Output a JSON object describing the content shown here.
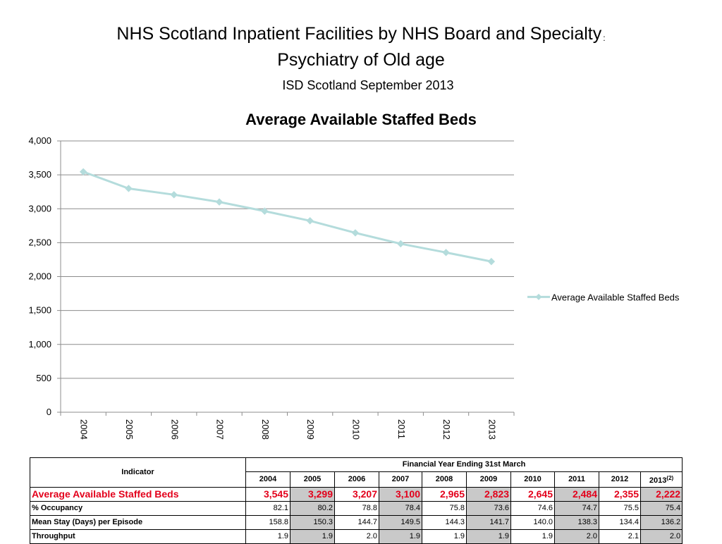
{
  "header": {
    "title_line1": "NHS Scotland  Inpatient Facilities by NHS Board and Specialty",
    "title_colon": ":",
    "title_line2": "Psychiatry of Old age",
    "subtitle": "ISD Scotland September 2013"
  },
  "chart_data": {
    "type": "line",
    "title": "Average Available Staffed Beds",
    "categories": [
      "2004",
      "2005",
      "2006",
      "2007",
      "2008",
      "2009",
      "2010",
      "2011",
      "2012",
      "2013"
    ],
    "series": [
      {
        "name": "Average Available Staffed Beds",
        "values": [
          3545,
          3299,
          3207,
          3100,
          2965,
          2823,
          2645,
          2484,
          2355,
          2222
        ]
      }
    ],
    "yticks": [
      "0",
      "500",
      "1,000",
      "1,500",
      "2,000",
      "2,500",
      "3,000",
      "3,500",
      "4,000"
    ],
    "ylim": [
      0,
      4000
    ],
    "xlabel": "",
    "ylabel": "",
    "legend_position": "right",
    "colors": {
      "line": "#b4dcdc",
      "marker": "#b4dcdc",
      "grid": "#8c8c8c",
      "axis": "#8c8c8c"
    }
  },
  "table": {
    "indicator_header": "Indicator",
    "period_header": "Financial Year Ending 31st March",
    "years": [
      "2004",
      "2005",
      "2006",
      "2007",
      "2008",
      "2009",
      "2010",
      "2011",
      "2012",
      "2013"
    ],
    "last_year_note": "(2)",
    "rows": [
      {
        "label": "Average Available Staffed Beds",
        "values": [
          "3,545",
          "3,299",
          "3,207",
          "3,100",
          "2,965",
          "2,823",
          "2,645",
          "2,484",
          "2,355",
          "2,222"
        ]
      },
      {
        "label": "% Occupancy",
        "values": [
          "82.1",
          "80.2",
          "78.8",
          "78.4",
          "75.8",
          "73.6",
          "74.6",
          "74.7",
          "75.5",
          "75.4"
        ]
      },
      {
        "label": "Mean Stay (Days) per Episode",
        "values": [
          "158.8",
          "150.3",
          "144.7",
          "149.5",
          "144.3",
          "141.7",
          "140.0",
          "138.3",
          "134.4",
          "136.2"
        ]
      },
      {
        "label": "Throughput",
        "values": [
          "1.9",
          "1.9",
          "2.0",
          "1.9",
          "1.9",
          "1.9",
          "1.9",
          "2.0",
          "2.1",
          "2.0"
        ]
      }
    ]
  }
}
